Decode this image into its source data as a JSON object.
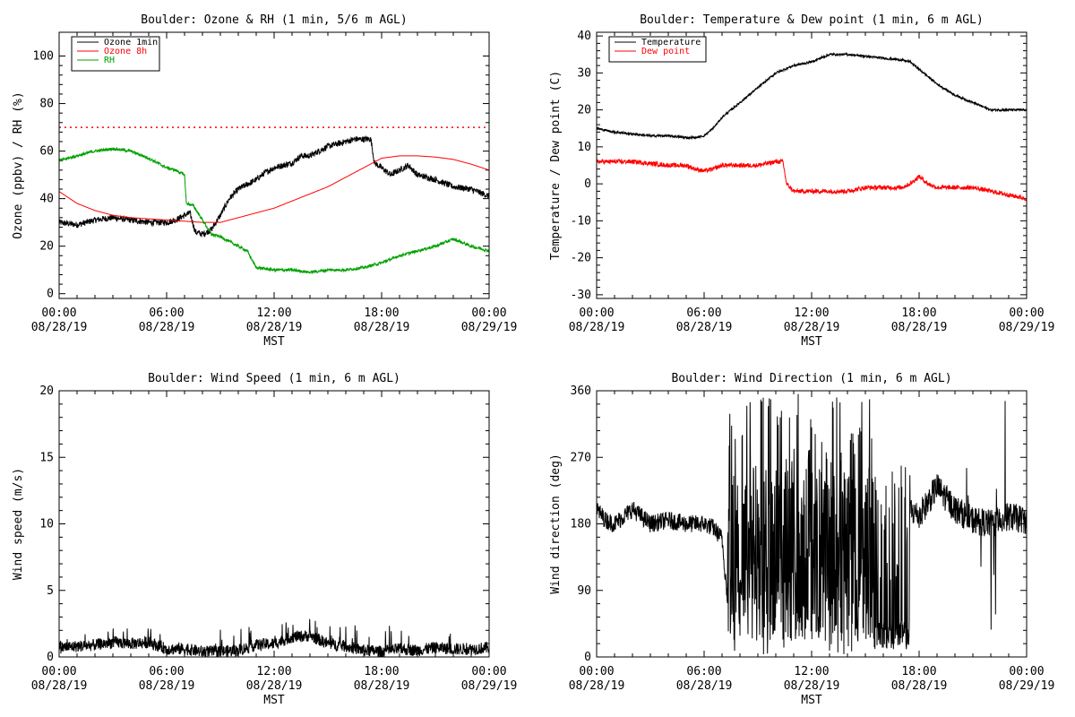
{
  "chart_data": [
    {
      "id": "ozone_rh",
      "type": "line",
      "title": "Boulder: Ozone & RH (1 min, 5/6 m AGL)",
      "xlabel": "MST",
      "ylabel": "Ozone (ppbv) / RH (%)",
      "xlim": [
        0,
        24
      ],
      "ylim": [
        -2,
        110
      ],
      "yticks": [
        0,
        20,
        40,
        60,
        80,
        100
      ],
      "xticks": [
        {
          "value": 0,
          "time": "00:00",
          "date": "08/28/19"
        },
        {
          "value": 6,
          "time": "06:00",
          "date": "08/28/19"
        },
        {
          "value": 12,
          "time": "12:00",
          "date": "08/28/19"
        },
        {
          "value": 18,
          "time": "18:00",
          "date": "08/28/19"
        },
        {
          "value": 24,
          "time": "00:00",
          "date": "08/29/19"
        }
      ],
      "legend": {
        "position": "top-left",
        "entries": [
          {
            "label": "Ozone 1min",
            "color": "#000000"
          },
          {
            "label": "Ozone 8h",
            "color": "#ff0000"
          },
          {
            "label": "RH",
            "color": "#00a000"
          }
        ]
      },
      "reference_line": {
        "y": 70,
        "color": "#ff0000",
        "style": "dotted"
      },
      "series": [
        {
          "name": "Ozone 1min",
          "color": "#000000",
          "noise": 1.3,
          "points": [
            [
              0,
              30
            ],
            [
              1,
              29
            ],
            [
              2,
              31
            ],
            [
              3,
              32
            ],
            [
              4,
              31
            ],
            [
              5,
              30
            ],
            [
              6,
              30
            ],
            [
              6.5,
              31
            ],
            [
              7,
              33
            ],
            [
              7.3,
              34
            ],
            [
              7.6,
              26
            ],
            [
              8,
              25
            ],
            [
              8.5,
              27
            ],
            [
              9,
              33
            ],
            [
              9.5,
              40
            ],
            [
              10,
              44
            ],
            [
              10.5,
              46
            ],
            [
              11,
              48
            ],
            [
              11.5,
              51
            ],
            [
              12,
              53
            ],
            [
              13,
              55
            ],
            [
              13.5,
              58
            ],
            [
              14,
              58
            ],
            [
              14.5,
              60
            ],
            [
              15,
              62
            ],
            [
              15.5,
              63
            ],
            [
              16,
              64
            ],
            [
              16.5,
              65
            ],
            [
              17,
              65
            ],
            [
              17.4,
              65
            ],
            [
              17.6,
              55
            ],
            [
              18,
              53
            ],
            [
              18.5,
              50
            ],
            [
              19,
              52
            ],
            [
              19.5,
              54
            ],
            [
              20,
              50
            ],
            [
              21,
              48
            ],
            [
              22,
              45
            ],
            [
              23,
              44
            ],
            [
              24,
              41
            ]
          ]
        },
        {
          "name": "Ozone 8h",
          "color": "#ff0000",
          "noise": 0,
          "points": [
            [
              0,
              43
            ],
            [
              1,
              38
            ],
            [
              2,
              35
            ],
            [
              3,
              33
            ],
            [
              4,
              32
            ],
            [
              5,
              31.5
            ],
            [
              6,
              31
            ],
            [
              7,
              30.5
            ],
            [
              8,
              30
            ],
            [
              9,
              30
            ],
            [
              10,
              32
            ],
            [
              11,
              34
            ],
            [
              12,
              36
            ],
            [
              13,
              39
            ],
            [
              14,
              42
            ],
            [
              15,
              45
            ],
            [
              16,
              49
            ],
            [
              17,
              53
            ],
            [
              18,
              57
            ],
            [
              19,
              58
            ],
            [
              20,
              58
            ],
            [
              21,
              57.5
            ],
            [
              22,
              56.5
            ],
            [
              23,
              54.5
            ],
            [
              24,
              52
            ]
          ]
        },
        {
          "name": "RH",
          "color": "#00a000",
          "noise": 0.6,
          "points": [
            [
              0,
              56
            ],
            [
              1,
              58
            ],
            [
              2,
              60
            ],
            [
              3,
              61
            ],
            [
              4,
              60
            ],
            [
              5,
              57
            ],
            [
              5.5,
              55
            ],
            [
              6,
              53
            ],
            [
              6.5,
              52
            ],
            [
              7,
              50
            ],
            [
              7.1,
              38
            ],
            [
              7.5,
              37
            ],
            [
              8,
              31
            ],
            [
              8.5,
              25
            ],
            [
              9,
              24
            ],
            [
              9.5,
              22
            ],
            [
              10,
              20
            ],
            [
              10.5,
              18
            ],
            [
              11,
              11
            ],
            [
              12,
              10
            ],
            [
              13,
              10
            ],
            [
              14,
              9
            ],
            [
              15,
              10
            ],
            [
              16,
              10
            ],
            [
              17,
              11
            ],
            [
              18,
              13
            ],
            [
              19,
              16
            ],
            [
              20,
              18
            ],
            [
              21,
              20
            ],
            [
              22,
              23
            ],
            [
              23,
              20
            ],
            [
              24,
              18
            ]
          ]
        }
      ]
    },
    {
      "id": "temp_dew",
      "type": "line",
      "title": "Boulder: Temperature & Dew point (1 min, 6 m AGL)",
      "xlabel": "MST",
      "ylabel": "Temperature / Dew point (C)",
      "xlim": [
        0,
        24
      ],
      "ylim": [
        -31,
        41
      ],
      "yticks": [
        -30,
        -20,
        -10,
        0,
        10,
        20,
        30,
        40
      ],
      "xticks": [
        {
          "value": 0,
          "time": "00:00",
          "date": "08/28/19"
        },
        {
          "value": 6,
          "time": "06:00",
          "date": "08/28/19"
        },
        {
          "value": 12,
          "time": "12:00",
          "date": "08/28/19"
        },
        {
          "value": 18,
          "time": "18:00",
          "date": "08/28/19"
        },
        {
          "value": 24,
          "time": "00:00",
          "date": "08/29/19"
        }
      ],
      "legend": {
        "position": "top-left",
        "entries": [
          {
            "label": "Temperature",
            "color": "#000000"
          },
          {
            "label": "Dew point",
            "color": "#ff0000"
          }
        ]
      },
      "series": [
        {
          "name": "Temperature",
          "color": "#000000",
          "noise": 0.3,
          "points": [
            [
              0,
              15
            ],
            [
              1,
              14
            ],
            [
              2,
              13.5
            ],
            [
              3,
              13
            ],
            [
              4,
              13
            ],
            [
              5,
              12.5
            ],
            [
              5.5,
              12.5
            ],
            [
              6,
              13
            ],
            [
              6.5,
              15
            ],
            [
              7,
              18
            ],
            [
              8,
              22
            ],
            [
              9,
              26
            ],
            [
              10,
              30
            ],
            [
              11,
              32
            ],
            [
              12,
              33
            ],
            [
              12.5,
              34
            ],
            [
              13,
              35
            ],
            [
              14,
              35
            ],
            [
              15,
              34.5
            ],
            [
              16,
              34
            ],
            [
              17,
              33.5
            ],
            [
              17.5,
              33
            ],
            [
              18,
              31
            ],
            [
              19,
              27
            ],
            [
              20,
              24
            ],
            [
              21,
              22
            ],
            [
              22,
              20
            ],
            [
              23,
              20
            ],
            [
              24,
              20
            ]
          ]
        },
        {
          "name": "Dew point",
          "color": "#ff0000",
          "noise": 0.6,
          "points": [
            [
              0,
              6
            ],
            [
              1,
              6
            ],
            [
              2,
              6
            ],
            [
              3,
              5.5
            ],
            [
              4,
              5
            ],
            [
              5,
              5
            ],
            [
              5.5,
              4
            ],
            [
              6,
              3.5
            ],
            [
              6.5,
              4
            ],
            [
              7,
              5
            ],
            [
              8,
              5
            ],
            [
              9,
              5
            ],
            [
              10,
              6
            ],
            [
              10.4,
              6
            ],
            [
              10.6,
              0
            ],
            [
              11,
              -2
            ],
            [
              12,
              -2
            ],
            [
              13,
              -2
            ],
            [
              14,
              -2
            ],
            [
              15,
              -1
            ],
            [
              16,
              -1
            ],
            [
              17,
              -1
            ],
            [
              17.5,
              0
            ],
            [
              18,
              2
            ],
            [
              18.5,
              0
            ],
            [
              19,
              -1
            ],
            [
              20,
              -1
            ],
            [
              21,
              -1
            ],
            [
              22,
              -2
            ],
            [
              23,
              -3
            ],
            [
              24,
              -4
            ]
          ]
        }
      ]
    },
    {
      "id": "wind_speed",
      "type": "line",
      "title": "Boulder: Wind Speed (1 min, 6 m AGL)",
      "xlabel": "MST",
      "ylabel": "Wind speed (m/s)",
      "xlim": [
        0,
        24
      ],
      "ylim": [
        0,
        20
      ],
      "yticks": [
        0,
        5,
        10,
        15,
        20
      ],
      "xticks": [
        {
          "value": 0,
          "time": "00:00",
          "date": "08/28/19"
        },
        {
          "value": 6,
          "time": "06:00",
          "date": "08/28/19"
        },
        {
          "value": 12,
          "time": "12:00",
          "date": "08/28/19"
        },
        {
          "value": 18,
          "time": "18:00",
          "date": "08/28/19"
        },
        {
          "value": 24,
          "time": "00:00",
          "date": "08/29/19"
        }
      ],
      "series": [
        {
          "name": "Wind speed",
          "color": "#000000",
          "noise": 0.45,
          "points": [
            [
              0,
              0.7
            ],
            [
              1,
              0.8
            ],
            [
              2,
              0.9
            ],
            [
              3,
              1.1
            ],
            [
              4,
              1.0
            ],
            [
              5,
              1.1
            ],
            [
              6,
              0.6
            ],
            [
              7,
              0.6
            ],
            [
              8,
              0.4
            ],
            [
              9,
              0.4
            ],
            [
              10,
              0.5
            ],
            [
              11,
              0.9
            ],
            [
              12,
              1.0
            ],
            [
              13,
              1.5
            ],
            [
              14,
              1.6
            ],
            [
              15,
              1.0
            ],
            [
              16,
              0.8
            ],
            [
              17,
              0.5
            ],
            [
              18,
              0.4
            ],
            [
              19,
              0.6
            ],
            [
              20,
              0.5
            ],
            [
              21,
              0.7
            ],
            [
              22,
              0.6
            ],
            [
              23,
              0.6
            ],
            [
              24,
              0.7
            ]
          ]
        }
      ]
    },
    {
      "id": "wind_dir",
      "type": "line",
      "title": "Boulder: Wind Direction (1 min, 6 m AGL)",
      "xlabel": "MST",
      "ylabel": "Wind direction (deg)",
      "xlim": [
        0,
        24
      ],
      "ylim": [
        0,
        360
      ],
      "yticks": [
        0,
        90,
        180,
        270,
        360
      ],
      "xticks": [
        {
          "value": 0,
          "time": "00:00",
          "date": "08/28/19"
        },
        {
          "value": 6,
          "time": "06:00",
          "date": "08/28/19"
        },
        {
          "value": 12,
          "time": "12:00",
          "date": "08/28/19"
        },
        {
          "value": 18,
          "time": "18:00",
          "date": "08/28/19"
        },
        {
          "value": 24,
          "time": "00:00",
          "date": "08/29/19"
        }
      ],
      "series": [
        {
          "name": "Wind direction",
          "color": "#000000",
          "noise": 12,
          "points": [
            [
              0,
              200
            ],
            [
              0.5,
              185
            ],
            [
              1,
              180
            ],
            [
              2,
              200
            ],
            [
              3,
              180
            ],
            [
              4,
              185
            ],
            [
              5,
              180
            ],
            [
              6,
              180
            ],
            [
              6.5,
              175
            ],
            [
              7,
              160
            ],
            [
              7.3,
              80
            ]
          ],
          "variable_segments": [
            [
              7.3,
              17.5
            ],
            [
              22,
              23
            ]
          ],
          "after_points": [
            [
              17.5,
              200
            ],
            [
              18,
              190
            ],
            [
              19,
              230
            ],
            [
              20,
              200
            ],
            [
              21,
              185
            ],
            [
              22,
              180
            ],
            [
              23,
              190
            ],
            [
              24,
              185
            ]
          ]
        }
      ]
    }
  ]
}
